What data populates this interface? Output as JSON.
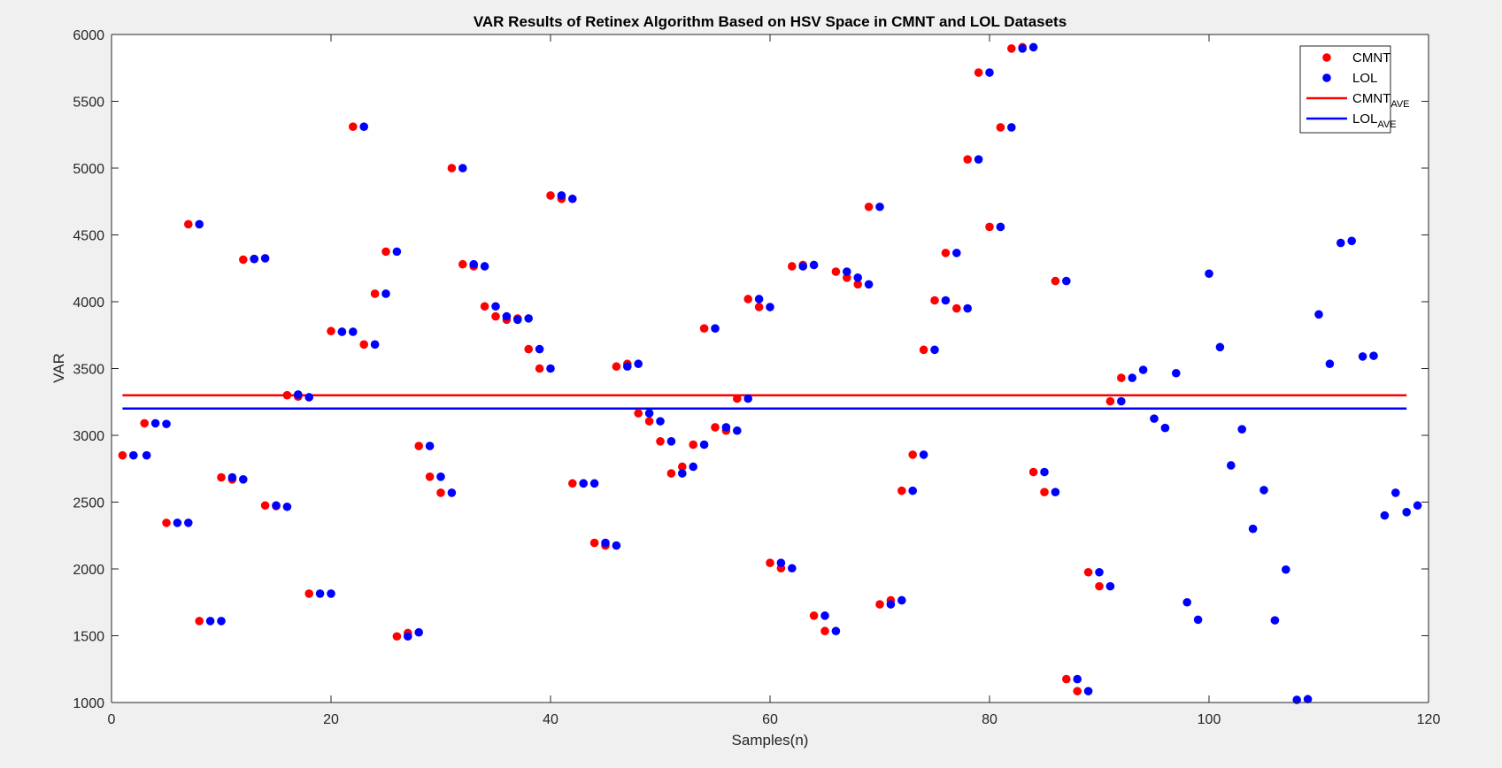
{
  "chart_data": {
    "type": "scatter",
    "title": "VAR Results of Retinex Algorithm Based on HSV Space in CMNT and LOL Datasets",
    "xlabel": "Samples(n)",
    "ylabel": "VAR",
    "xlim": [
      0,
      120
    ],
    "ylim": [
      1000,
      6000
    ],
    "xticks": [
      0,
      20,
      40,
      60,
      80,
      100,
      120
    ],
    "yticks": [
      1000,
      1500,
      2000,
      2500,
      3000,
      3500,
      4000,
      4500,
      5000,
      5500,
      6000
    ],
    "grid": false,
    "legend_position": "top-right",
    "legend": [
      {
        "label": "CMNT",
        "sub": "",
        "kind": "marker",
        "color": "#ff0000"
      },
      {
        "label": "LOL",
        "sub": "",
        "kind": "marker",
        "color": "#0000ff"
      },
      {
        "label": "CMNT",
        "sub": "AVE",
        "kind": "line",
        "color": "#ff0000"
      },
      {
        "label": "LOL",
        "sub": "AVE",
        "kind": "line",
        "color": "#0000ff"
      }
    ],
    "averages": [
      {
        "name": "CMNT_AVE",
        "color": "#ff0000",
        "value": 3300,
        "x_range": [
          1,
          118
        ]
      },
      {
        "name": "LOL_AVE",
        "color": "#0000ff",
        "value": 3200,
        "x_range": [
          1,
          118
        ]
      }
    ],
    "series": [
      {
        "name": "CMNT",
        "color": "#ff0000",
        "points": [
          [
            1,
            2850
          ],
          [
            3,
            3090
          ],
          [
            5,
            2345
          ],
          [
            7,
            4580
          ],
          [
            8,
            1610
          ],
          [
            10,
            2685
          ],
          [
            11,
            2670
          ],
          [
            12,
            4315
          ],
          [
            13,
            4320
          ],
          [
            14,
            2475
          ],
          [
            15,
            2470
          ],
          [
            16,
            3300
          ],
          [
            17,
            3290
          ],
          [
            18,
            1815
          ],
          [
            20,
            3780
          ],
          [
            21,
            3775
          ],
          [
            22,
            5310
          ],
          [
            23,
            3680
          ],
          [
            24,
            4060
          ],
          [
            25,
            4375
          ],
          [
            26,
            1495
          ],
          [
            27,
            1520
          ],
          [
            28,
            2920
          ],
          [
            29,
            2690
          ],
          [
            30,
            2570
          ],
          [
            31,
            5000
          ],
          [
            32,
            4280
          ],
          [
            33,
            4265
          ],
          [
            34,
            3965
          ],
          [
            35,
            3890
          ],
          [
            36,
            3865
          ],
          [
            37,
            3875
          ],
          [
            38,
            3645
          ],
          [
            39,
            3500
          ],
          [
            40,
            4795
          ],
          [
            41,
            4770
          ],
          [
            42,
            2640
          ],
          [
            43,
            2640
          ],
          [
            44,
            2195
          ],
          [
            45,
            2175
          ],
          [
            46,
            3515
          ],
          [
            47,
            3535
          ],
          [
            48,
            3165
          ],
          [
            49,
            3105
          ],
          [
            50,
            2955
          ],
          [
            51,
            2715
          ],
          [
            52,
            2765
          ],
          [
            53,
            2930
          ],
          [
            54,
            3800
          ],
          [
            55,
            3060
          ],
          [
            56,
            3035
          ],
          [
            57,
            3275
          ],
          [
            58,
            4020
          ],
          [
            59,
            3960
          ],
          [
            60,
            2045
          ],
          [
            61,
            2005
          ],
          [
            62,
            4265
          ],
          [
            63,
            4275
          ],
          [
            64,
            1650
          ],
          [
            65,
            1535
          ],
          [
            66,
            4225
          ],
          [
            67,
            4180
          ],
          [
            68,
            4130
          ],
          [
            69,
            4710
          ],
          [
            70,
            1735
          ],
          [
            71,
            1765
          ],
          [
            72,
            2585
          ],
          [
            73,
            2855
          ],
          [
            74,
            3640
          ],
          [
            75,
            4010
          ],
          [
            76,
            4365
          ],
          [
            77,
            3950
          ],
          [
            78,
            5065
          ],
          [
            79,
            5715
          ],
          [
            80,
            4560
          ],
          [
            81,
            5305
          ],
          [
            82,
            5895
          ],
          [
            83,
            5905
          ],
          [
            84,
            2725
          ],
          [
            85,
            2575
          ],
          [
            86,
            4155
          ],
          [
            87,
            1175
          ],
          [
            88,
            1085
          ],
          [
            89,
            1975
          ],
          [
            90,
            1870
          ],
          [
            91,
            3255
          ],
          [
            92,
            3430
          ]
        ]
      },
      {
        "name": "LOL",
        "color": "#0000ff",
        "points": [
          [
            2,
            2850
          ],
          [
            3.2,
            2850
          ],
          [
            4,
            3090
          ],
          [
            5,
            3085
          ],
          [
            6,
            2345
          ],
          [
            7,
            2345
          ],
          [
            8,
            4580
          ],
          [
            9,
            1610
          ],
          [
            10,
            1610
          ],
          [
            11,
            2685
          ],
          [
            12,
            2670
          ],
          [
            13,
            4320
          ],
          [
            14,
            4325
          ],
          [
            15,
            2475
          ],
          [
            16,
            2465
          ],
          [
            17,
            3305
          ],
          [
            18,
            3285
          ],
          [
            19,
            1815
          ],
          [
            20,
            1815
          ],
          [
            21,
            3775
          ],
          [
            22,
            3775
          ],
          [
            23,
            5310
          ],
          [
            24,
            3680
          ],
          [
            25,
            4060
          ],
          [
            26,
            4375
          ],
          [
            27,
            1495
          ],
          [
            28,
            1525
          ],
          [
            29,
            2920
          ],
          [
            30,
            2690
          ],
          [
            31,
            2570
          ],
          [
            32,
            5000
          ],
          [
            33,
            4280
          ],
          [
            34,
            4265
          ],
          [
            35,
            3965
          ],
          [
            36,
            3890
          ],
          [
            37,
            3865
          ],
          [
            38,
            3875
          ],
          [
            39,
            3645
          ],
          [
            40,
            3500
          ],
          [
            41,
            4795
          ],
          [
            42,
            4770
          ],
          [
            43,
            2640
          ],
          [
            44,
            2640
          ],
          [
            45,
            2195
          ],
          [
            46,
            2175
          ],
          [
            47,
            3515
          ],
          [
            48,
            3535
          ],
          [
            49,
            3165
          ],
          [
            50,
            3105
          ],
          [
            51,
            2955
          ],
          [
            52,
            2715
          ],
          [
            53,
            2765
          ],
          [
            54,
            2930
          ],
          [
            55,
            3800
          ],
          [
            56,
            3060
          ],
          [
            57,
            3035
          ],
          [
            58,
            3275
          ],
          [
            59,
            4020
          ],
          [
            60,
            3960
          ],
          [
            61,
            2045
          ],
          [
            62,
            2005
          ],
          [
            63,
            4265
          ],
          [
            64,
            4275
          ],
          [
            65,
            1650
          ],
          [
            66,
            1535
          ],
          [
            67,
            4225
          ],
          [
            68,
            4180
          ],
          [
            69,
            4130
          ],
          [
            70,
            4710
          ],
          [
            71,
            1735
          ],
          [
            72,
            1765
          ],
          [
            73,
            2585
          ],
          [
            74,
            2855
          ],
          [
            75,
            3640
          ],
          [
            76,
            4010
          ],
          [
            77,
            4365
          ],
          [
            78,
            3950
          ],
          [
            79,
            5065
          ],
          [
            80,
            5715
          ],
          [
            81,
            4560
          ],
          [
            82,
            5305
          ],
          [
            83,
            5895
          ],
          [
            84,
            5905
          ],
          [
            85,
            2725
          ],
          [
            86,
            2575
          ],
          [
            87,
            4155
          ],
          [
            88,
            1175
          ],
          [
            89,
            1085
          ],
          [
            90,
            1975
          ],
          [
            91,
            1870
          ],
          [
            92,
            3255
          ],
          [
            93,
            3430
          ],
          [
            94,
            3490
          ],
          [
            95,
            3125
          ],
          [
            96,
            3055
          ],
          [
            97,
            3465
          ],
          [
            98,
            1750
          ],
          [
            99,
            1620
          ],
          [
            100,
            4210
          ],
          [
            101,
            3660
          ],
          [
            102,
            2775
          ],
          [
            103,
            3045
          ],
          [
            104,
            2300
          ],
          [
            105,
            2590
          ],
          [
            106,
            1615
          ],
          [
            107,
            1995
          ],
          [
            108,
            1020
          ],
          [
            109,
            1025
          ],
          [
            110,
            3905
          ],
          [
            111,
            3535
          ],
          [
            112,
            4440
          ],
          [
            113,
            4455
          ],
          [
            114,
            3590
          ],
          [
            115,
            3595
          ],
          [
            116,
            2400
          ],
          [
            117,
            2570
          ],
          [
            118,
            2425
          ],
          [
            119,
            2475
          ]
        ]
      }
    ]
  }
}
